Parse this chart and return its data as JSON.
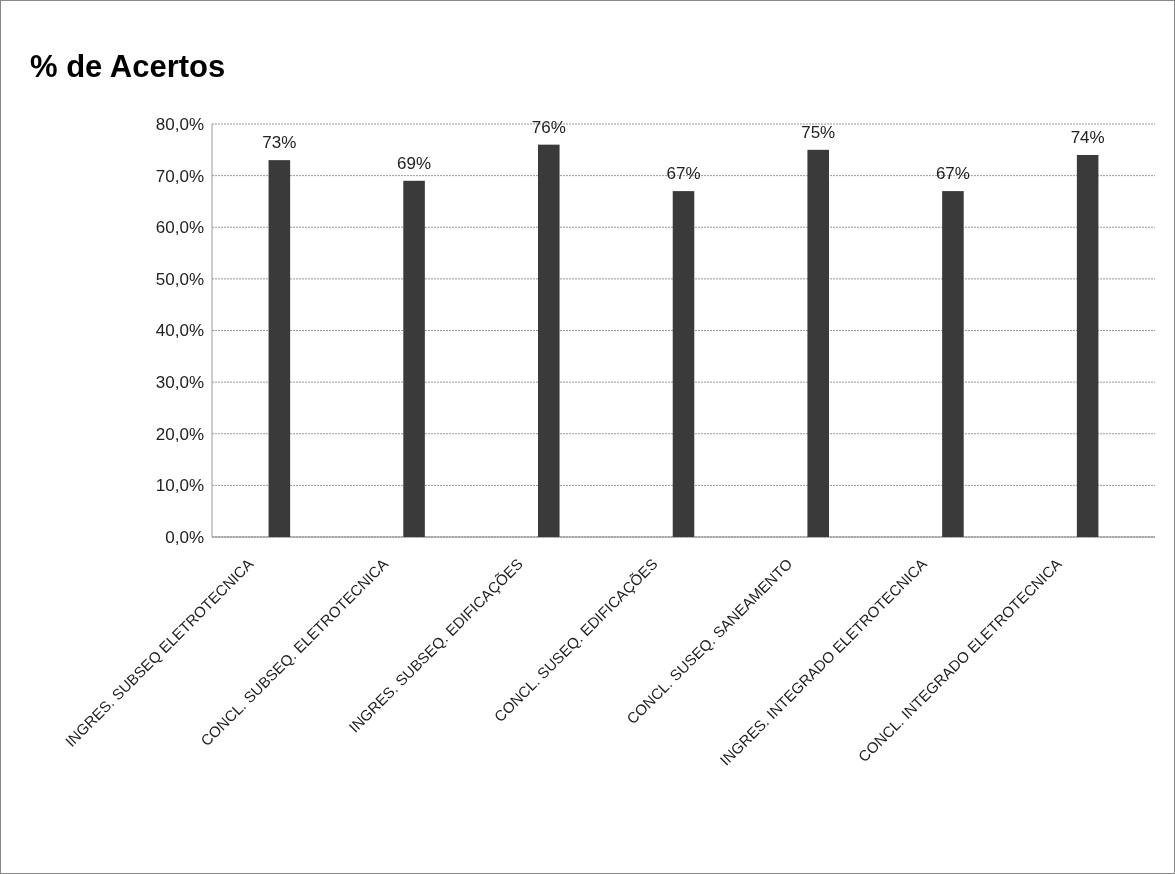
{
  "chart_data": {
    "type": "bar",
    "title": "% de Acertos",
    "categories": [
      "INGRES. SUBSEQ ELETROTECNICA",
      "CONCL. SUBSEQ. ELETROTECNICA",
      "INGRES. SUBSEQ. EDIFICAÇÕES",
      "CONCL. SUSEQ. EDIFICAÇÕES",
      "CONCL. SUSEQ. SANEAMENTO",
      "INGRES. INTEGRADO ELETROTECNICA",
      "CONCL. INTEGRADO ELETROTECNICA"
    ],
    "values": [
      73,
      69,
      76,
      67,
      75,
      67,
      74
    ],
    "value_labels": [
      "73%",
      "69%",
      "76%",
      "67%",
      "75%",
      "67%",
      "74%"
    ],
    "color": "#3a3a3a",
    "ylim": [
      0,
      80
    ],
    "yticks": [
      {
        "value": 0,
        "label": "0,0%"
      },
      {
        "value": 10,
        "label": "10,0%"
      },
      {
        "value": 20,
        "label": "20,0%"
      },
      {
        "value": 30,
        "label": "30,0%"
      },
      {
        "value": 40,
        "label": "40,0%"
      },
      {
        "value": 50,
        "label": "50,0%"
      },
      {
        "value": 60,
        "label": "60,0%"
      },
      {
        "value": 70,
        "label": "70,0%"
      },
      {
        "value": 80,
        "label": "80,0%"
      }
    ],
    "grid": "y"
  }
}
